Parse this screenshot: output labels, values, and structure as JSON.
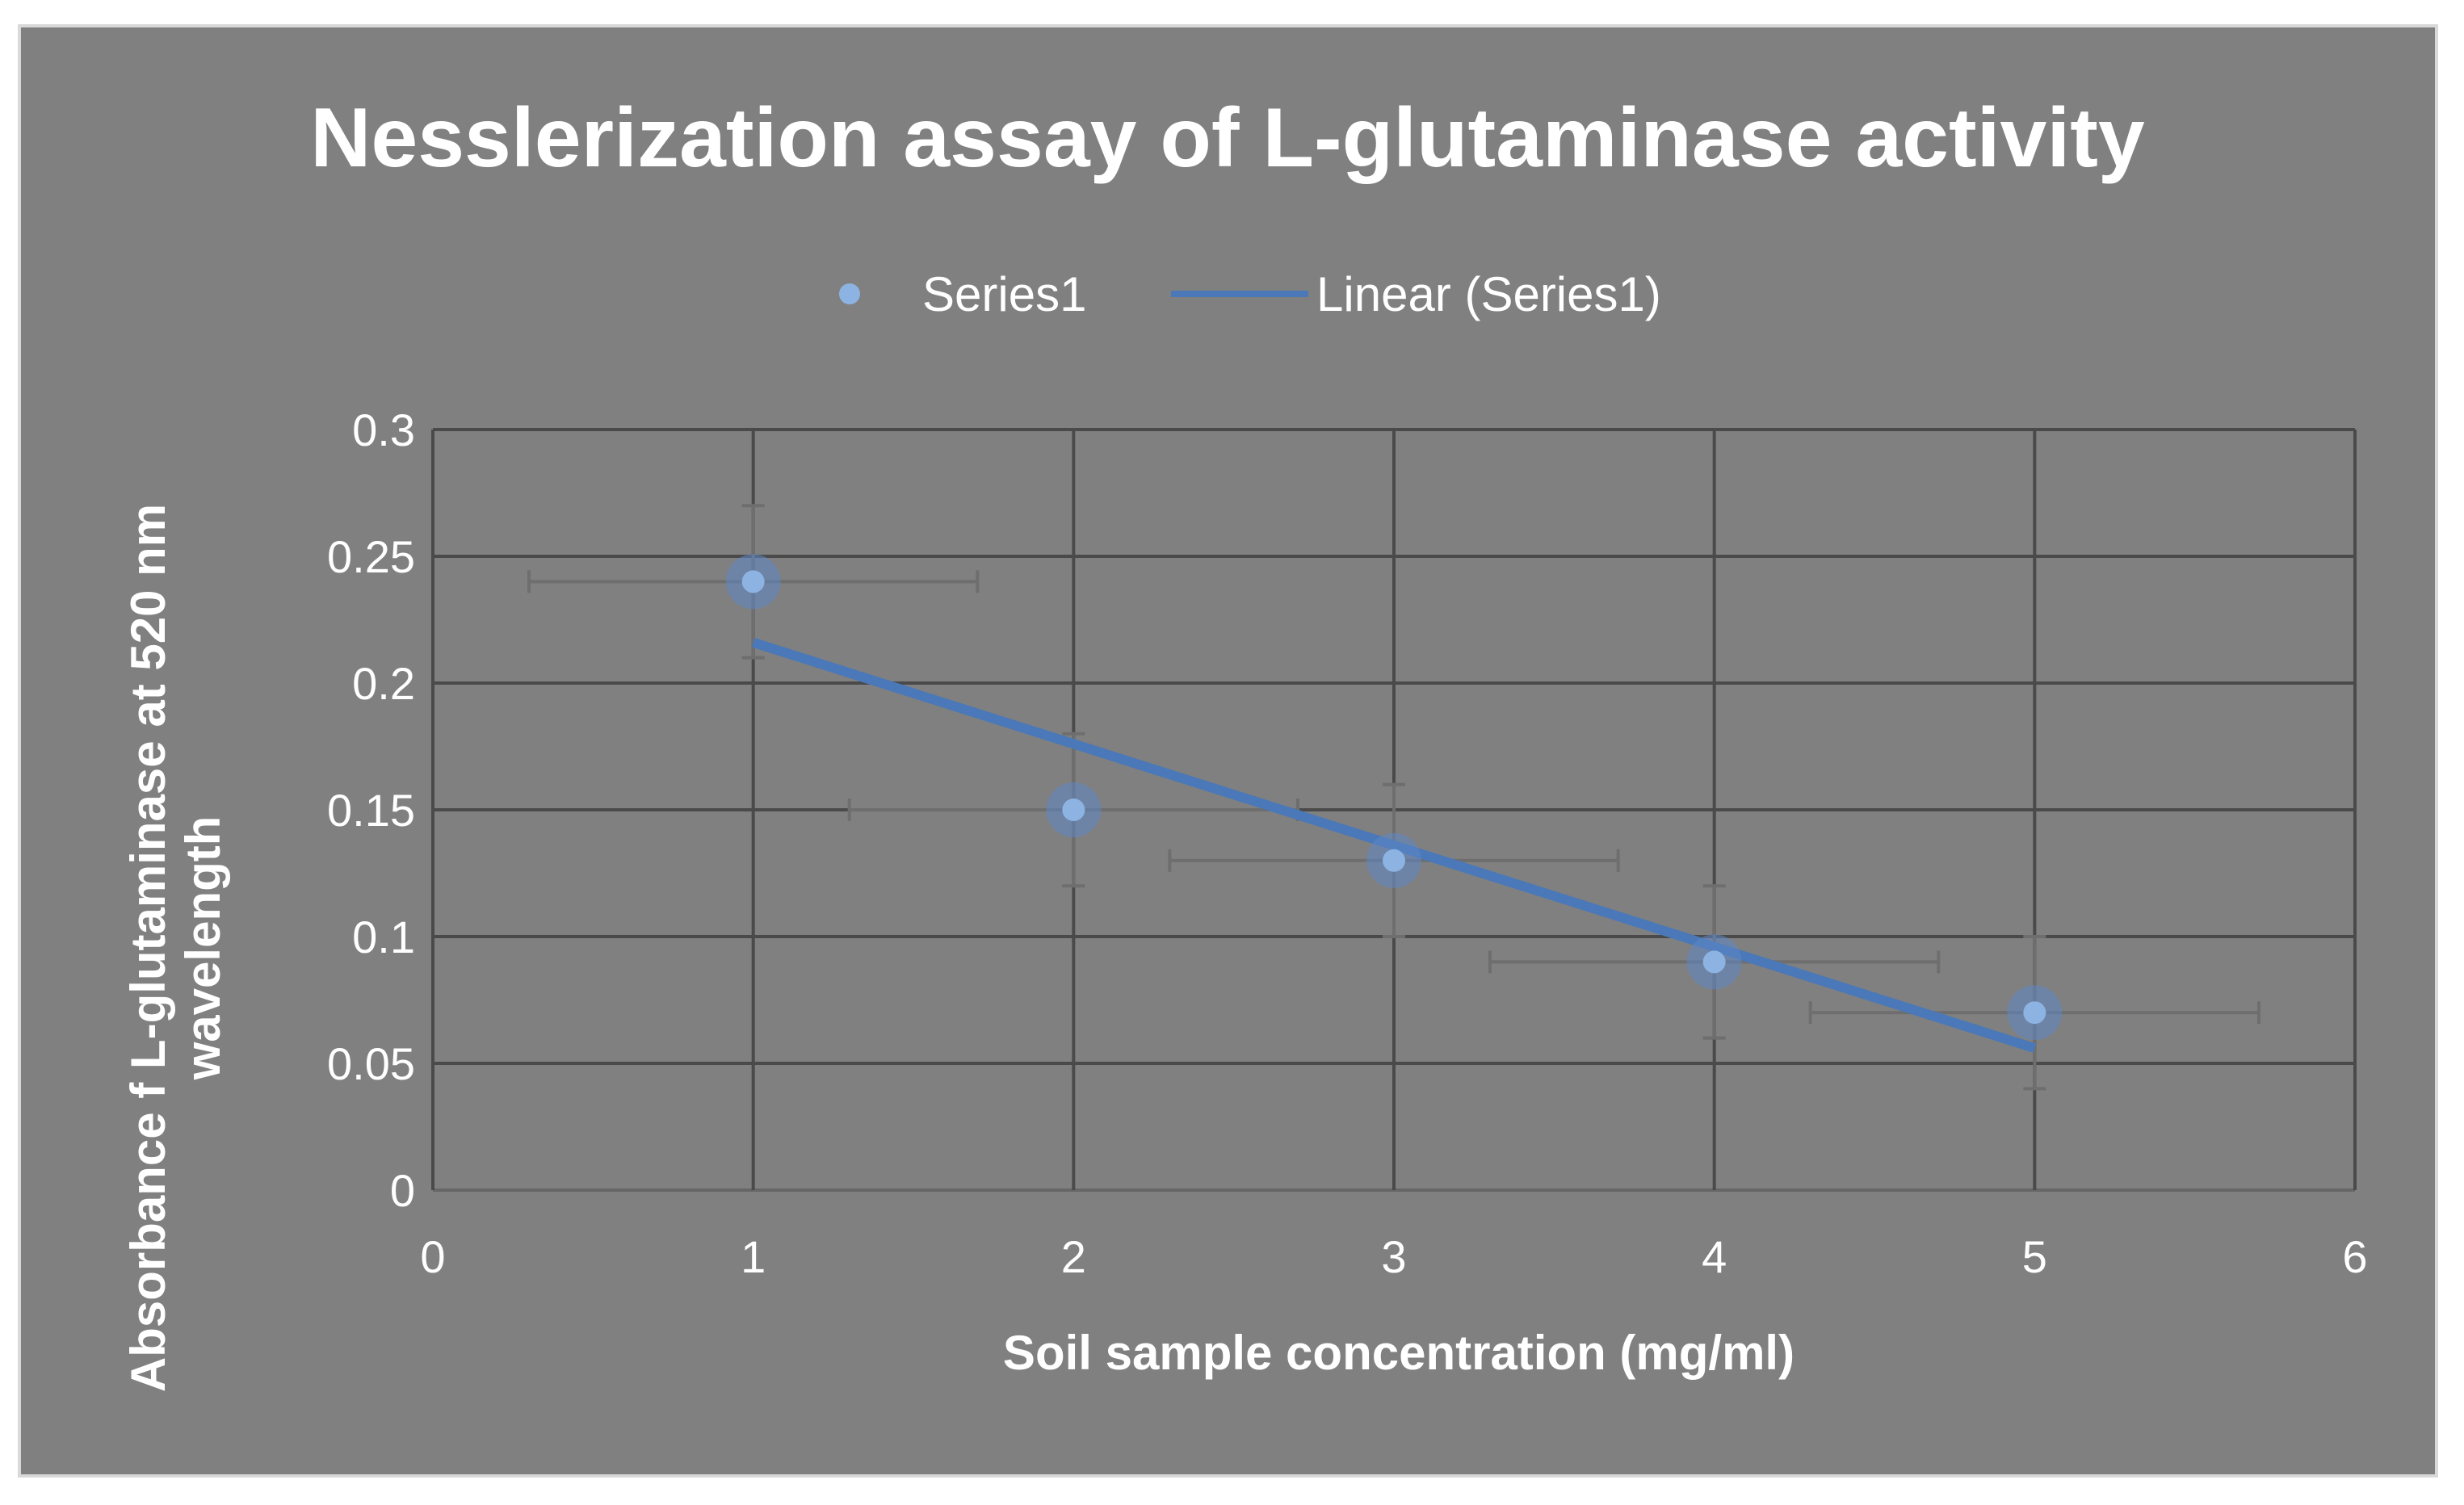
{
  "chart_data": {
    "type": "scatter",
    "title": "Nesslerization assay of L-glutaminase activity",
    "xlabel": "Soil sample concentration (mg/ml)",
    "ylabel_lines": [
      "Absorbance f L-glutaminase at 520 nm",
      "wavelength"
    ],
    "xlim": [
      0,
      6
    ],
    "ylim": [
      0,
      0.3
    ],
    "x_ticks": [
      "0",
      "1",
      "2",
      "3",
      "4",
      "5",
      "6"
    ],
    "y_ticks": [
      "0",
      "0.05",
      "0.1",
      "0.15",
      "0.2",
      "0.25",
      "0.3"
    ],
    "grid": true,
    "legend_position": "top",
    "series": [
      {
        "name": "Series1",
        "x": [
          1,
          2,
          3,
          4,
          5
        ],
        "y": [
          0.24,
          0.15,
          0.13,
          0.09,
          0.07
        ],
        "x_error": 0.7,
        "y_error": 0.03,
        "color": "#8db3e2"
      }
    ],
    "trendline": {
      "name": "Linear (Series1)",
      "type": "linear",
      "x": [
        1,
        5
      ],
      "y": [
        0.216,
        0.056
      ],
      "color": "#4a78b8"
    }
  }
}
